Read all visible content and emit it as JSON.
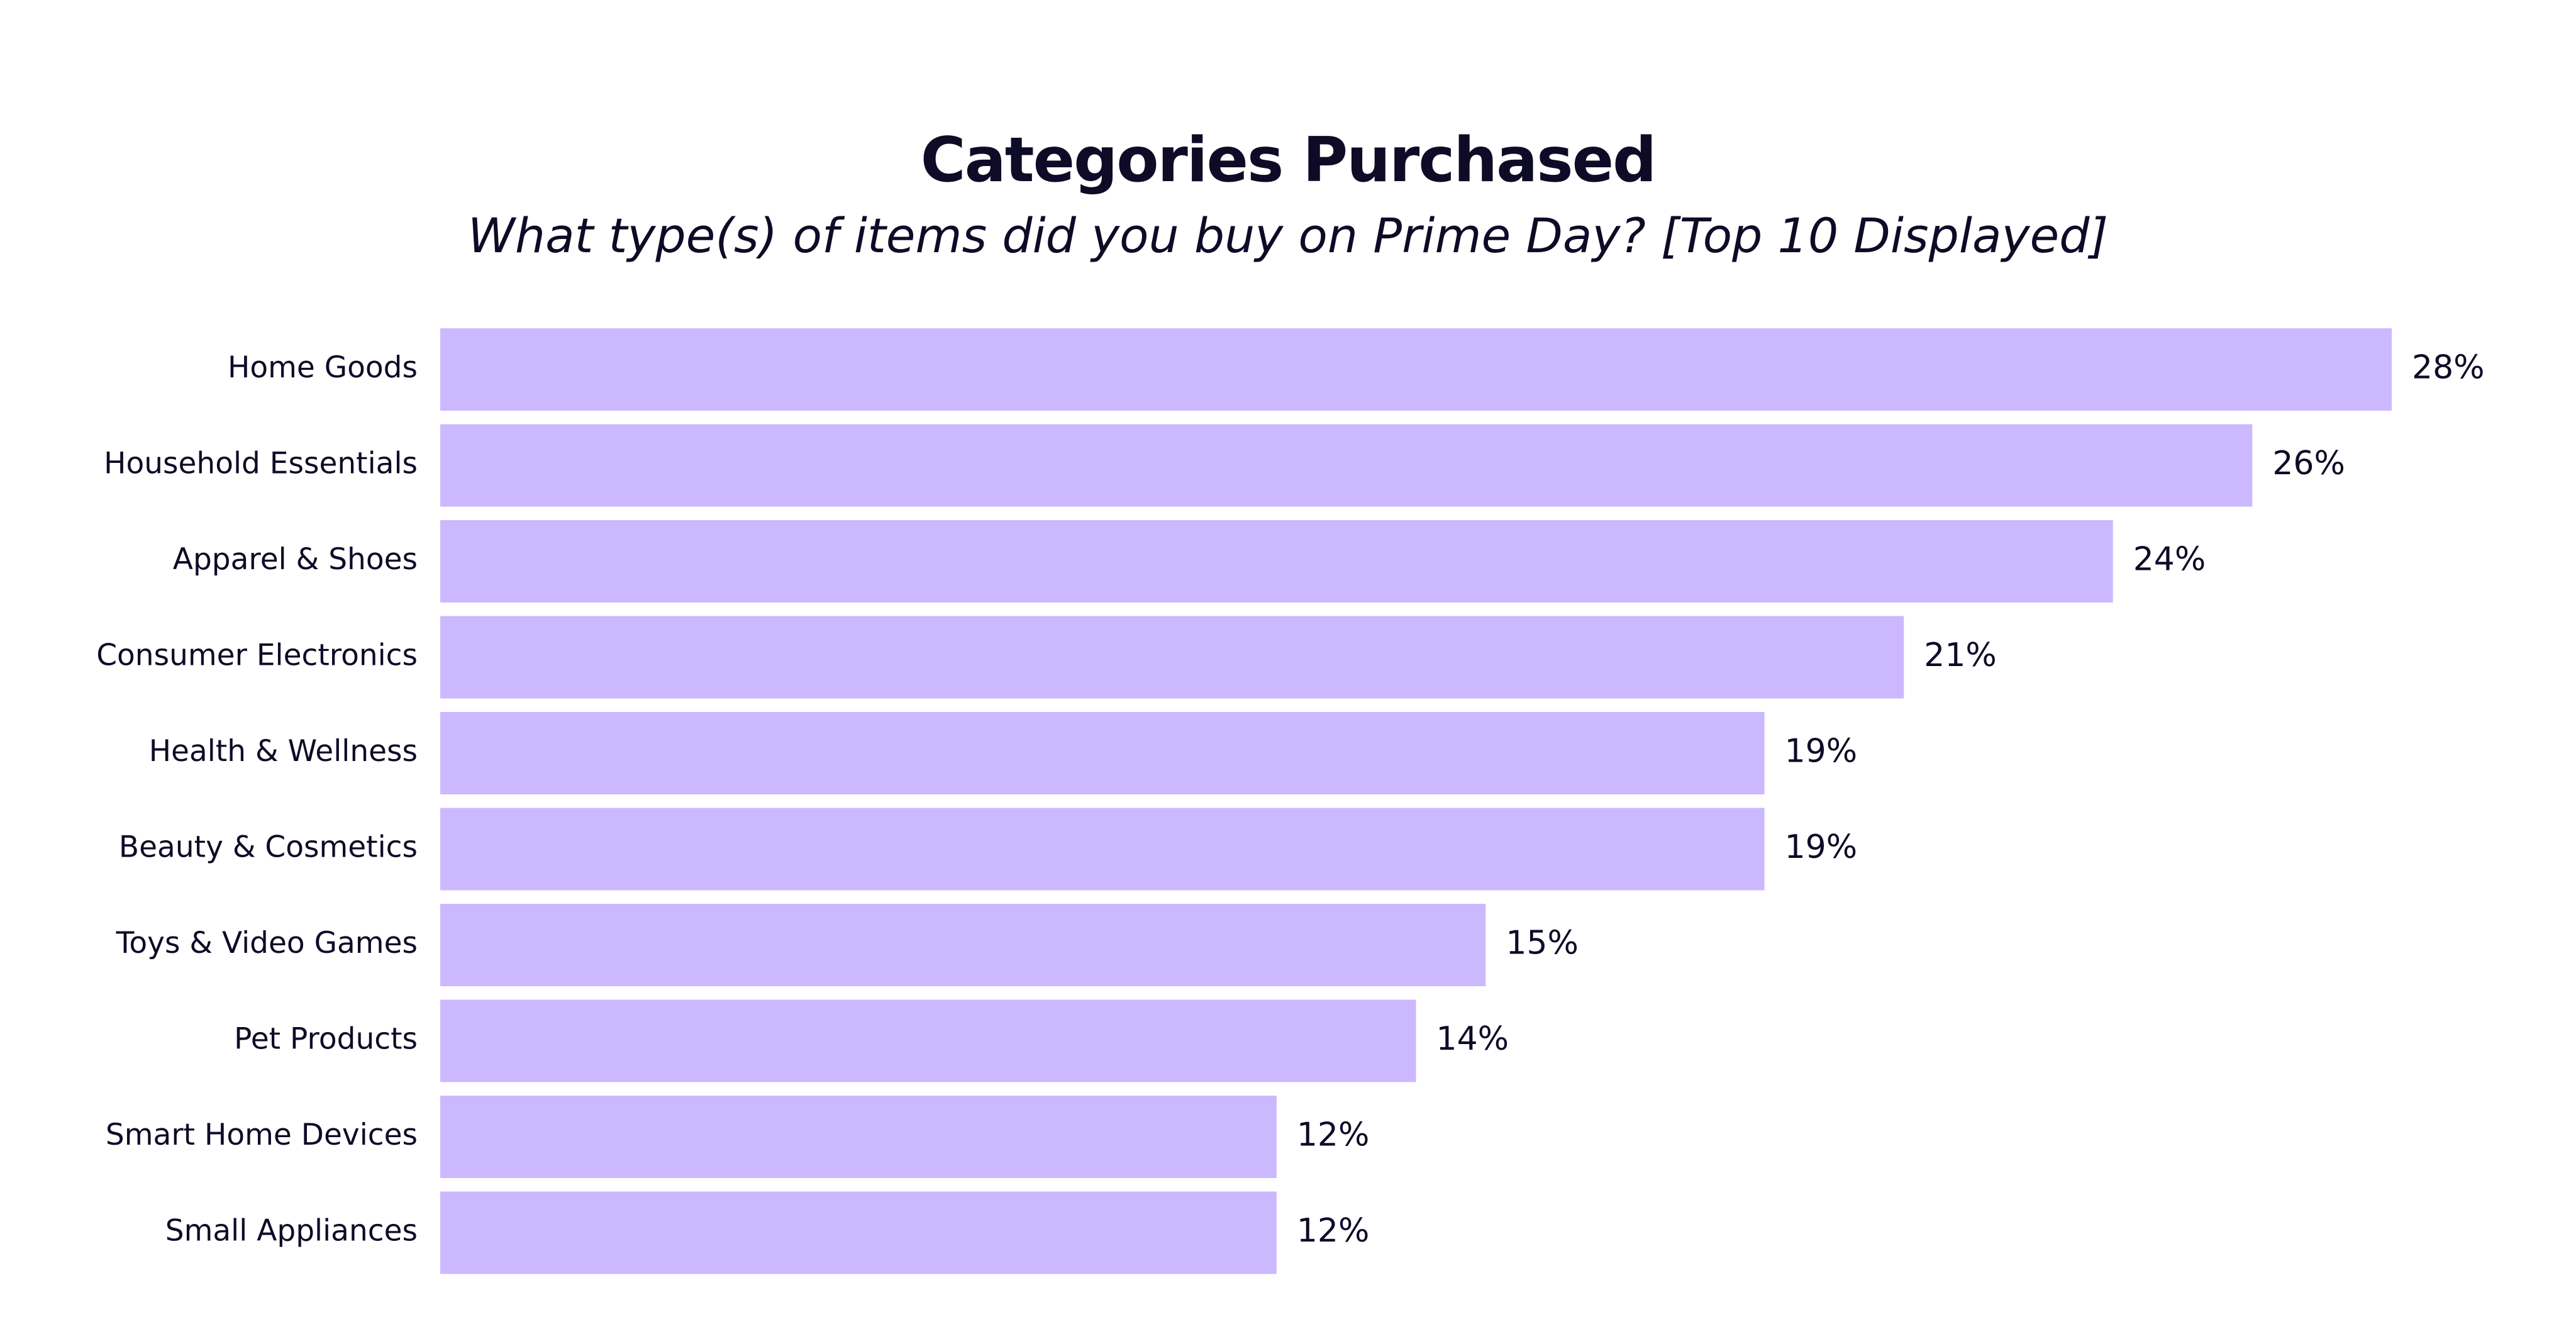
{
  "chart_data": {
    "type": "bar",
    "orientation": "horizontal",
    "title": "Categories Purchased",
    "subtitle": "What type(s) of items did you buy on Prime Day? [Top 10 Displayed]",
    "categories": [
      "Home Goods",
      "Household Essentials",
      "Apparel & Shoes",
      "Consumer Electronics",
      "Health & Wellness",
      "Beauty & Cosmetics",
      "Toys & Video Games",
      "Pet Products",
      "Smart Home Devices",
      "Small Appliances"
    ],
    "values": [
      28,
      26,
      24,
      21,
      19,
      19,
      15,
      14,
      12,
      12
    ],
    "value_labels": [
      "28%",
      "26%",
      "24%",
      "21%",
      "19%",
      "19%",
      "15%",
      "14%",
      "12%",
      "12%"
    ],
    "unit": "%",
    "xlim": [
      0,
      28
    ],
    "grid": false,
    "legend": "none",
    "bar_color": "#ccb8fe",
    "text_color": "#0d0b26"
  }
}
